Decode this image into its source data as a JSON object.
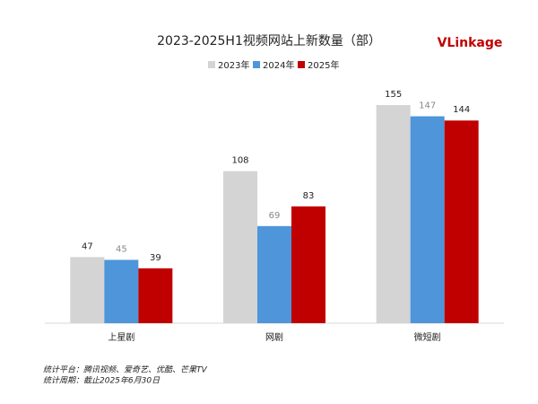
{
  "chart_data": {
    "type": "bar",
    "title": "2023-2025H1视频网站上新数量（部）",
    "logo": "VLinkage",
    "categories": [
      "上星剧",
      "网剧",
      "微短剧"
    ],
    "series": [
      {
        "name": "2023年",
        "color": "#d4d4d4",
        "values": [
          47,
          108,
          155
        ]
      },
      {
        "name": "2024年",
        "color": "#4e95d9",
        "values": [
          45,
          69,
          147
        ]
      },
      {
        "name": "2025年",
        "color": "#c00000",
        "values": [
          39,
          83,
          144
        ]
      }
    ],
    "notes": [
      "统计平台：腾讯视频、爱奇艺、优酷、芒果TV",
      "统计周期：截止2025年6月30日"
    ]
  }
}
